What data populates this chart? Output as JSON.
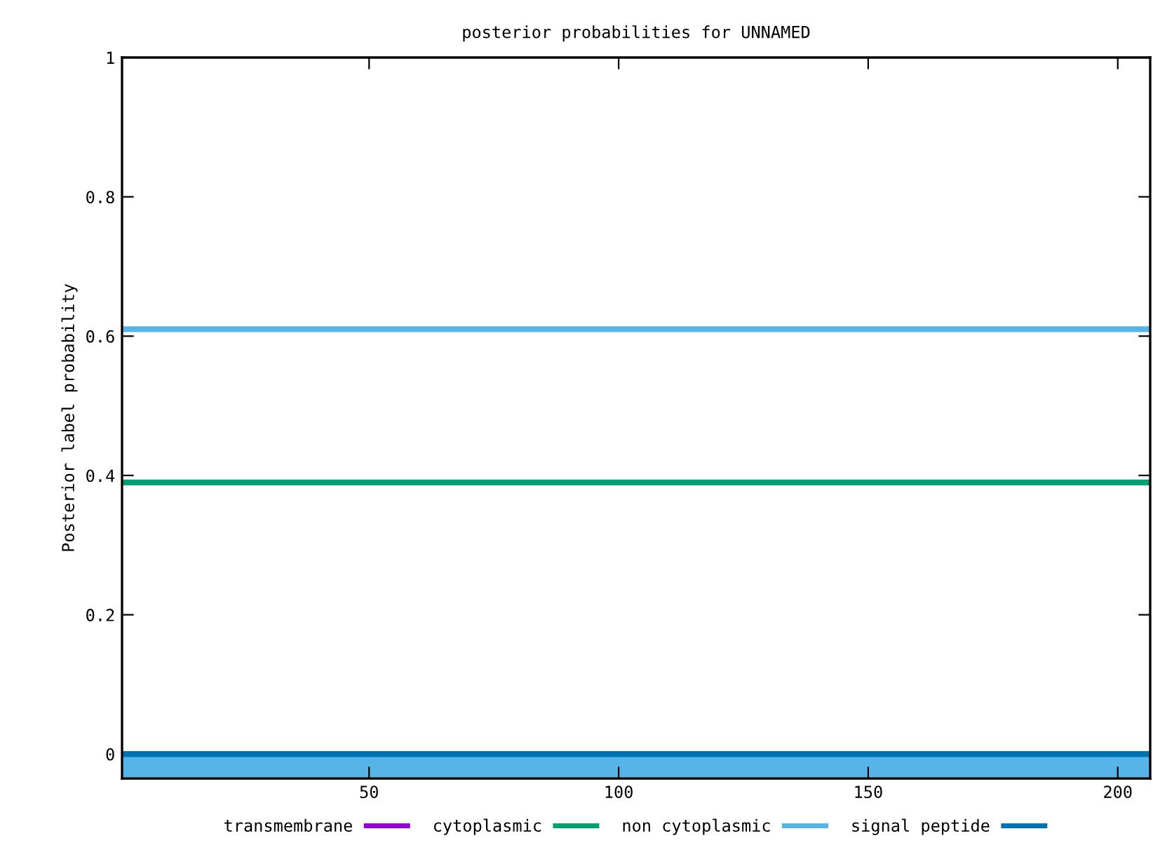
{
  "chart_data": {
    "type": "line",
    "title": "posterior probabilities for UNNAMED",
    "ylabel": "Posterior label probability",
    "x": [
      1,
      206
    ],
    "series": [
      {
        "name": "transmembrane",
        "color": "#9400d3",
        "values": [
          null,
          null
        ]
      },
      {
        "name": "cytoplasmic",
        "color": "#009e73",
        "values": [
          0.39,
          0.39
        ]
      },
      {
        "name": "non cytoplasmic",
        "color": "#56b4e9",
        "values": [
          0.61,
          0.61
        ]
      },
      {
        "name": "signal peptide",
        "color": "#0072b2",
        "values": [
          0,
          0
        ]
      }
    ],
    "bands": [
      {
        "axis": "y",
        "from": -0.033,
        "to": 0,
        "color": "#56b4e9"
      }
    ],
    "xlim": [
      0.5,
      206.5
    ],
    "ylim": [
      -0.035,
      1
    ],
    "xticks": [
      50,
      100,
      150,
      200
    ],
    "yticks": [
      0,
      0.2,
      0.4,
      0.6,
      0.8,
      1
    ],
    "grid": false,
    "legend": "bottom",
    "marker": "none",
    "line_style": "solid"
  }
}
